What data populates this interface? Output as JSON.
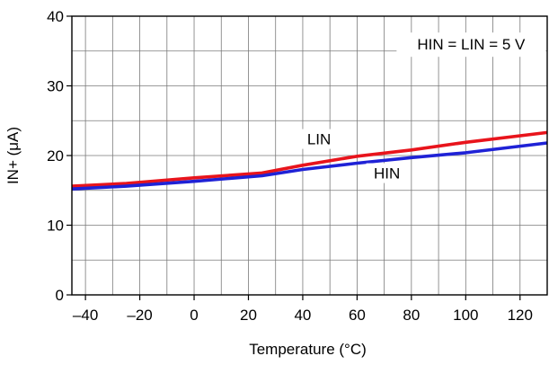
{
  "chart_data": {
    "type": "line",
    "xlabel": "Temperature (°C)",
    "ylabel": "IN+ (μA)",
    "xlim": [
      -45,
      130
    ],
    "ylim": [
      0,
      40
    ],
    "x_ticks": [
      -40,
      -20,
      0,
      20,
      40,
      60,
      80,
      100,
      120
    ],
    "x_tick_labels": [
      "–40",
      "–20",
      "0",
      "20",
      "40",
      "60",
      "80",
      "100",
      "120"
    ],
    "y_ticks": [
      0,
      10,
      20,
      30,
      40
    ],
    "y_tick_labels": [
      "0",
      "10",
      "20",
      "30",
      "40"
    ],
    "grid": true,
    "annotation": "HIN = LIN = 5 V",
    "series": [
      {
        "name": "LIN",
        "color": "#e8141c",
        "x": [
          -45,
          -25,
          0,
          25,
          40,
          60,
          80,
          100,
          130
        ],
        "y": [
          15.6,
          16.0,
          16.8,
          17.5,
          18.6,
          19.9,
          20.8,
          21.9,
          23.3
        ]
      },
      {
        "name": "HIN",
        "color": "#1f22d6",
        "x": [
          -45,
          -25,
          0,
          25,
          40,
          60,
          80,
          100,
          130
        ],
        "y": [
          15.2,
          15.6,
          16.3,
          17.1,
          18.0,
          18.9,
          19.7,
          20.4,
          21.8
        ]
      }
    ]
  }
}
